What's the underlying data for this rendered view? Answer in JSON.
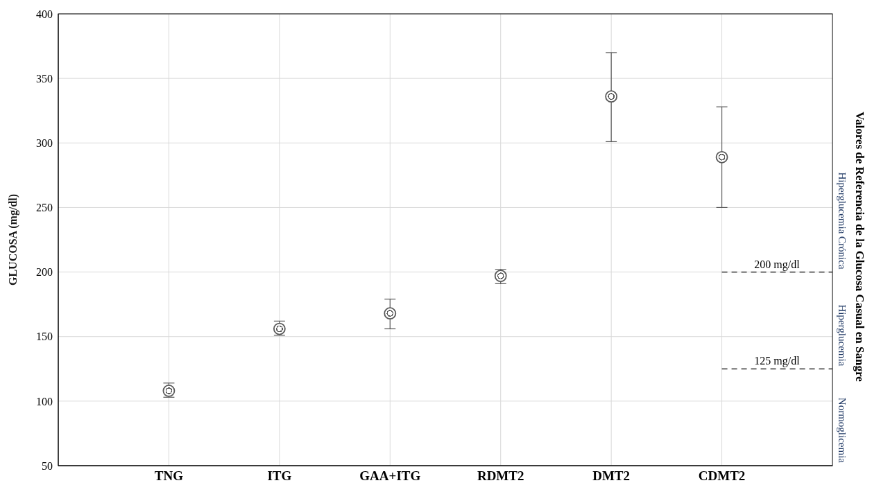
{
  "chart_data": {
    "type": "scatter",
    "ylabel": "GLUCOSA (mg/dl)",
    "y2label": "Valores de Referencia de la Glucosa Casual en Sangre",
    "categories": [
      "TNG",
      "ITG",
      "GAA+ITG",
      "RDMT2",
      "DMT2",
      "CDMT2"
    ],
    "series": [
      {
        "color": "#595959",
        "values": [
          108,
          156,
          168,
          197,
          336,
          289
        ],
        "errors": [
          [
            103,
            114
          ],
          [
            151,
            162
          ],
          [
            156,
            179
          ],
          [
            191,
            202
          ],
          [
            301,
            370
          ],
          [
            250,
            328
          ]
        ]
      }
    ],
    "ylim": [
      50,
      400
    ],
    "yticks": [
      50,
      100,
      150,
      200,
      250,
      300,
      350,
      400
    ],
    "grid": true,
    "marker": "circle",
    "legend": false,
    "ref_lines": [
      {
        "axis": "y",
        "value": 200,
        "label": "200 mg/dl",
        "color": "#000000",
        "line_style": "dashed"
      },
      {
        "axis": "y",
        "value": 125,
        "label": "125 mg/dl",
        "color": "#000000",
        "line_style": "dashed"
      }
    ],
    "annotations": [
      "Hiperglucemia Crónica",
      "Hiperglucemia",
      "Normoglicemia"
    ]
  }
}
